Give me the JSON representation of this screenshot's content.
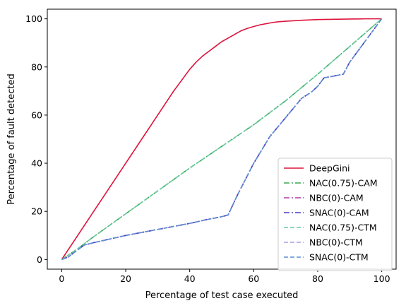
{
  "chart_data": {
    "type": "line",
    "title": "",
    "xlabel": "Percentage of test case executed",
    "ylabel": "Percentage of fault detected",
    "xlim": [
      -4.5,
      104.5
    ],
    "ylim": [
      -4,
      104
    ],
    "xticks": [
      0,
      20,
      40,
      60,
      80,
      100
    ],
    "yticks": [
      0,
      20,
      40,
      60,
      80,
      100
    ],
    "grid": false,
    "legend_position": "lower-right",
    "series": [
      {
        "name": "DeepGini",
        "color": "#dc143c",
        "style": "solid",
        "x": [
          0,
          5,
          10,
          15,
          20,
          25,
          30,
          35,
          40,
          42,
          44,
          46,
          48,
          50,
          52,
          54,
          56,
          58,
          60,
          62,
          64,
          66,
          68,
          70,
          75,
          80,
          85,
          90,
          95,
          100
        ],
        "y": [
          0,
          10,
          20,
          30,
          40,
          50,
          60,
          70,
          79,
          82,
          84.5,
          86.5,
          88.5,
          90.5,
          92,
          93.5,
          95,
          96,
          96.8,
          97.5,
          98,
          98.5,
          98.8,
          99,
          99.4,
          99.7,
          99.8,
          99.9,
          100,
          100
        ]
      },
      {
        "name": "NAC(0.75)-CAM",
        "color": "#3aa84f",
        "style": "dashdot",
        "x": [
          0,
          5,
          10,
          20,
          30,
          40,
          50,
          60,
          70,
          80,
          90,
          100
        ],
        "y": [
          0,
          4.5,
          9.5,
          19,
          28.5,
          38,
          47,
          56,
          66,
          77,
          88.5,
          100
        ]
      },
      {
        "name": "NBC(0)-CAM",
        "color": "#b03aa8",
        "style": "dashdot",
        "x": [
          0,
          2,
          4,
          7,
          10,
          20,
          30,
          40,
          45,
          50,
          52,
          55,
          60,
          65,
          70,
          75,
          78,
          80,
          82,
          85,
          88,
          90,
          95,
          100
        ],
        "y": [
          0,
          1,
          3,
          6,
          7,
          10,
          12.5,
          15,
          16.5,
          17.8,
          18.5,
          27,
          40,
          51,
          59,
          67,
          69.5,
          72,
          75.5,
          76.2,
          77,
          82,
          91,
          100
        ]
      },
      {
        "name": "SNAC(0)-CAM",
        "color": "#4b3fc7",
        "style": "dashdot",
        "x": [
          0,
          2,
          4,
          7,
          10,
          20,
          30,
          40,
          45,
          50,
          52,
          55,
          60,
          65,
          70,
          75,
          78,
          80,
          82,
          85,
          88,
          90,
          95,
          100
        ],
        "y": [
          0,
          1,
          3,
          6,
          7,
          10,
          12.5,
          15,
          16.5,
          17.8,
          18.5,
          27,
          40,
          51,
          59,
          67,
          69.5,
          72,
          75.5,
          76.2,
          77,
          82,
          91,
          100
        ]
      },
      {
        "name": "NAC(0.75)-CTM",
        "color": "#66c8a0",
        "style": "dashed",
        "x": [
          0,
          5,
          10,
          20,
          30,
          40,
          50,
          60,
          70,
          80,
          90,
          100
        ],
        "y": [
          0,
          4.5,
          9.5,
          19,
          28.5,
          38,
          47,
          56,
          66,
          77,
          88.5,
          100
        ]
      },
      {
        "name": "NBC(0)-CTM",
        "color": "#a8a0e0",
        "style": "dashed",
        "x": [
          0,
          2,
          4,
          7,
          10,
          20,
          30,
          40,
          45,
          50,
          52,
          55,
          60,
          65,
          70,
          75,
          78,
          80,
          82,
          85,
          88,
          90,
          95,
          100
        ],
        "y": [
          0,
          1,
          3,
          6,
          7,
          10,
          12.5,
          15,
          16.5,
          17.8,
          18.5,
          27,
          40,
          51,
          59,
          67,
          69.5,
          72,
          75.5,
          76.2,
          77,
          82,
          91,
          100
        ]
      },
      {
        "name": "SNAC(0)-CTM",
        "color": "#5b8fd0",
        "style": "dashed",
        "x": [
          0,
          2,
          4,
          7,
          10,
          20,
          30,
          40,
          45,
          50,
          52,
          55,
          60,
          65,
          70,
          75,
          78,
          80,
          82,
          85,
          88,
          90,
          95,
          100
        ],
        "y": [
          0,
          1,
          3,
          6,
          7,
          10,
          12.5,
          15,
          16.5,
          17.8,
          18.5,
          27,
          40,
          51,
          59,
          67,
          69.5,
          72,
          75.5,
          76.2,
          77,
          82,
          91,
          100
        ]
      }
    ]
  }
}
